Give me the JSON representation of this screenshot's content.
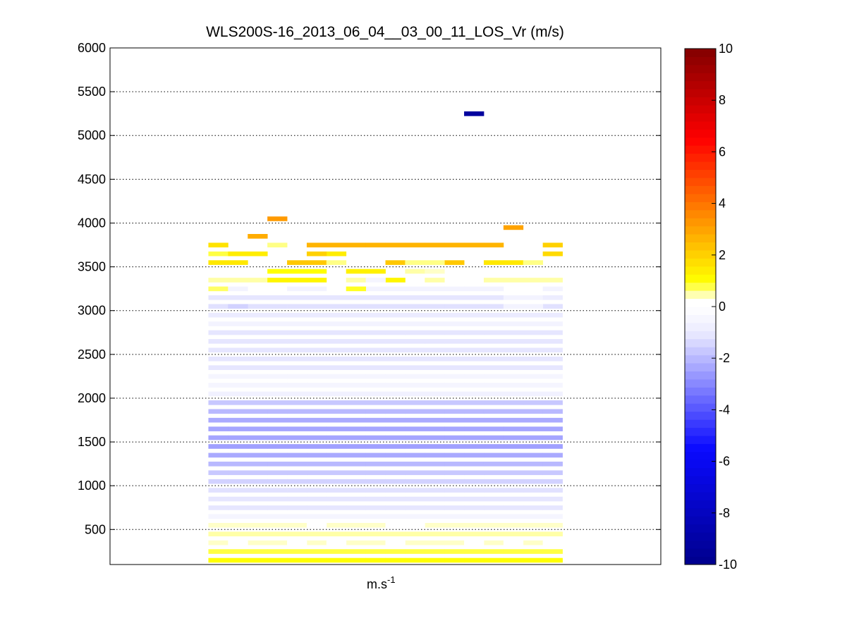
{
  "chart_data": {
    "type": "heatmap",
    "title": "WLS200S-16_2013_06_04__03_00_11_LOS_Vr (m/s)",
    "xlabel": {
      "base": "m.s",
      "exponent": "-1"
    },
    "ylabel": "",
    "ylim": [
      100,
      6000
    ],
    "yticks": [
      500,
      1000,
      1500,
      2000,
      2500,
      3000,
      3500,
      4000,
      4500,
      5000,
      5500,
      6000
    ],
    "grid": "dotted-horizontal",
    "colorbar": {
      "range": [
        -10,
        10
      ],
      "ticks": [
        -10,
        -8,
        -6,
        -4,
        -2,
        0,
        2,
        4,
        6,
        8,
        10
      ],
      "position": "right"
    },
    "columns": 18,
    "column_range": [
      5,
      23
    ],
    "x_span": [
      0,
      28
    ],
    "cell_height": 50,
    "cells": [
      {
        "z": 5250,
        "c": [
          18
        ],
        "v": -9.3
      },
      {
        "z": 4050,
        "c": [
          8
        ],
        "v": 3.2
      },
      {
        "z": 3950,
        "c": [
          20
        ],
        "v": 3.0
      },
      {
        "z": 3850,
        "c": [
          7
        ],
        "v": 2.8
      },
      {
        "z": 3750,
        "c": [
          5
        ],
        "v": 1.6
      },
      {
        "z": 3750,
        "c": [
          8
        ],
        "v": 0.6
      },
      {
        "z": 3750,
        "c": [
          10,
          11,
          12,
          13,
          14,
          15,
          16,
          17,
          18,
          19
        ],
        "v": 2.6
      },
      {
        "z": 3750,
        "c": [
          22
        ],
        "v": 2.0
      },
      {
        "z": 3650,
        "c": [
          5
        ],
        "v": 0.8
      },
      {
        "z": 3650,
        "c": [
          6,
          7,
          11
        ],
        "v": 1.4
      },
      {
        "z": 3650,
        "c": [
          10
        ],
        "v": 2.0
      },
      {
        "z": 3650,
        "c": [
          22
        ],
        "v": 1.8
      },
      {
        "z": 3550,
        "c": [
          5,
          6,
          19,
          20
        ],
        "v": 1.5
      },
      {
        "z": 3550,
        "c": [
          9,
          10,
          14,
          17
        ],
        "v": 2.2
      },
      {
        "z": 3550,
        "c": [
          11,
          15,
          16,
          21
        ],
        "v": 0.6
      },
      {
        "z": 3450,
        "c": [
          8,
          9,
          10
        ],
        "v": 1.0
      },
      {
        "z": 3450,
        "c": [
          12,
          13
        ],
        "v": 1.3
      },
      {
        "z": 3450,
        "c": [
          15
        ],
        "v": 0.5
      },
      {
        "z": 3450,
        "c": [
          16
        ],
        "v": 0.4
      },
      {
        "z": 3350,
        "c": [
          5,
          6,
          7,
          12,
          16,
          19,
          20,
          21,
          22
        ],
        "v": 0.5
      },
      {
        "z": 3350,
        "c": [
          8,
          9,
          10,
          14
        ],
        "v": 1.2
      },
      {
        "z": 3350,
        "c": [
          13
        ],
        "v": -0.5
      },
      {
        "z": 3250,
        "c": [
          5
        ],
        "v": 0.7
      },
      {
        "z": 3250,
        "c": [
          6,
          9,
          10,
          13,
          14,
          15,
          16,
          17,
          18,
          19,
          22
        ],
        "v": -0.6
      },
      {
        "z": 3250,
        "c": [
          12
        ],
        "v": 0.9
      },
      {
        "z": 3150,
        "c": [
          5,
          6,
          7,
          8,
          9,
          10,
          11,
          12,
          13,
          14,
          15,
          16,
          17,
          18,
          19
        ],
        "v": -1.1
      },
      {
        "z": 3150,
        "c": [
          20,
          21
        ],
        "v": -0.6
      },
      {
        "z": 3150,
        "c": [
          22
        ],
        "v": -0.9
      },
      {
        "z": 3050,
        "c": [
          5,
          7,
          8,
          9,
          10,
          11,
          12,
          13,
          14,
          15,
          16,
          17,
          18,
          19,
          22
        ],
        "v": -1.2
      },
      {
        "z": 3050,
        "c": [
          6
        ],
        "v": -1.5
      },
      {
        "z": 3050,
        "c": [
          20,
          21
        ],
        "v": -0.6
      },
      {
        "z": 2950,
        "c": [
          5,
          6,
          7,
          8,
          9,
          10,
          11,
          12,
          13,
          14,
          15,
          16,
          17,
          18,
          19,
          20,
          21,
          22
        ],
        "v": -1.0
      },
      {
        "z": 2850,
        "c": [
          5,
          6,
          7,
          8,
          9,
          10,
          11,
          12,
          13,
          14,
          15,
          16,
          17,
          18,
          19,
          20,
          21,
          22
        ],
        "v": -0.6
      },
      {
        "z": 2750,
        "c": [
          5,
          6,
          7,
          8,
          9,
          10,
          11,
          12,
          13,
          14,
          15,
          16,
          17,
          18,
          19,
          20,
          21,
          22
        ],
        "v": -1.1
      },
      {
        "z": 2650,
        "c": [
          5,
          6,
          7,
          8,
          9,
          10,
          11,
          12,
          13,
          14,
          15,
          16,
          17,
          18,
          19,
          20,
          21,
          22
        ],
        "v": -1.1
      },
      {
        "z": 2550,
        "c": [
          5,
          6,
          7,
          8,
          9,
          10,
          11,
          12,
          13,
          14,
          15,
          16,
          17,
          18,
          19,
          20,
          21,
          22
        ],
        "v": -1.1
      },
      {
        "z": 2450,
        "c": [
          5,
          6,
          7,
          8,
          9,
          10,
          11,
          12,
          13,
          14,
          15,
          16,
          17,
          18,
          19,
          20,
          21,
          22
        ],
        "v": -1.1
      },
      {
        "z": 2350,
        "c": [
          5,
          6,
          7,
          8,
          9,
          10,
          11,
          12,
          13,
          14,
          15,
          16,
          17,
          18,
          19,
          20,
          21,
          22
        ],
        "v": -1.1
      },
      {
        "z": 2250,
        "c": [
          5,
          6,
          7,
          8,
          9,
          10,
          11,
          12,
          13,
          14,
          15,
          16,
          17,
          18,
          19,
          20,
          21,
          22
        ],
        "v": -0.5
      },
      {
        "z": 2150,
        "c": [
          5,
          6,
          7,
          8,
          9,
          10,
          11,
          12,
          13,
          14,
          15,
          16,
          17,
          18,
          19,
          20,
          21,
          22
        ],
        "v": -0.5
      },
      {
        "z": 2050,
        "c": [
          5,
          6,
          7,
          8,
          9,
          10,
          11,
          12,
          13,
          14,
          15,
          16,
          17,
          18,
          19,
          20,
          21,
          22
        ],
        "v": -0.7
      },
      {
        "z": 1950,
        "c": [
          5,
          6,
          7,
          8,
          9,
          10,
          11,
          12,
          13,
          14,
          15,
          16,
          17,
          18,
          19,
          20,
          21,
          22
        ],
        "v": -1.7
      },
      {
        "z": 1850,
        "c": [
          5,
          6,
          7,
          8,
          9,
          10,
          11,
          12,
          13,
          14,
          15,
          16,
          17,
          18,
          19,
          20,
          21,
          22
        ],
        "v": -2.0
      },
      {
        "z": 1750,
        "c": [
          5,
          6,
          7,
          8,
          9,
          10,
          11,
          12,
          13,
          14,
          15,
          16,
          17,
          18,
          19,
          20,
          21,
          22
        ],
        "v": -2.3
      },
      {
        "z": 1650,
        "c": [
          5,
          6,
          7,
          8,
          9,
          10,
          11,
          12,
          13,
          14,
          15,
          16,
          17,
          18,
          19,
          20,
          21,
          22
        ],
        "v": -2.4
      },
      {
        "z": 1550,
        "c": [
          5,
          6,
          7,
          8,
          9,
          10,
          11,
          12,
          13,
          14,
          15,
          16,
          17,
          18,
          19,
          20,
          21,
          22
        ],
        "v": -2.4
      },
      {
        "z": 1450,
        "c": [
          5,
          6,
          7,
          8,
          9,
          10,
          11,
          12,
          13,
          14,
          15,
          16,
          17,
          18,
          19,
          20,
          21,
          22
        ],
        "v": -2.5
      },
      {
        "z": 1350,
        "c": [
          5,
          6,
          7,
          8,
          9,
          10,
          11,
          12,
          13,
          14,
          15,
          16,
          17,
          18,
          19,
          20,
          21,
          22
        ],
        "v": -2.3
      },
      {
        "z": 1250,
        "c": [
          5,
          6,
          7,
          8,
          9,
          10,
          11,
          12,
          13,
          14,
          15,
          16,
          17,
          18,
          19,
          20,
          21,
          22
        ],
        "v": -2.0
      },
      {
        "z": 1150,
        "c": [
          5,
          6,
          7,
          8,
          9,
          10,
          11,
          12,
          13,
          14,
          15,
          16,
          17,
          18,
          19,
          20,
          21,
          22
        ],
        "v": -1.7
      },
      {
        "z": 1050,
        "c": [
          5,
          6,
          7,
          8,
          9,
          10,
          11,
          12,
          13,
          14,
          15,
          16,
          17,
          18,
          19,
          20,
          21,
          22
        ],
        "v": -1.5
      },
      {
        "z": 950,
        "c": [
          5,
          6,
          7,
          8,
          9,
          10,
          11,
          12,
          13,
          14,
          15,
          16,
          17,
          18,
          19,
          20,
          21,
          22
        ],
        "v": -1.2
      },
      {
        "z": 850,
        "c": [
          5,
          6,
          7,
          8,
          9,
          10,
          11,
          12,
          13,
          14,
          15,
          16,
          17,
          18,
          19,
          20,
          21,
          22
        ],
        "v": -1.1
      },
      {
        "z": 750,
        "c": [
          5,
          6,
          7,
          8,
          9,
          10,
          11,
          12,
          13,
          14,
          15,
          16,
          17,
          18,
          19,
          20,
          21,
          22
        ],
        "v": -1.1
      },
      {
        "z": 650,
        "c": [
          5,
          6,
          7,
          8,
          9,
          10,
          11,
          12,
          13,
          14,
          15,
          16,
          17,
          18,
          19,
          20,
          21,
          22
        ],
        "v": -0.5
      },
      {
        "z": 550,
        "c": [
          5,
          6,
          7,
          8,
          9,
          11,
          12,
          13,
          16,
          17,
          18,
          19,
          20,
          21,
          22
        ],
        "v": 0.4
      },
      {
        "z": 550,
        "c": [
          10,
          14,
          15
        ],
        "v": 0.2
      },
      {
        "z": 450,
        "c": [
          5,
          6,
          7,
          8,
          9,
          10,
          11,
          12,
          13,
          14,
          15,
          16,
          17,
          18,
          19,
          20,
          21,
          22
        ],
        "v": 0.5
      },
      {
        "z": 350,
        "c": [
          5,
          7,
          8,
          10,
          12,
          13,
          15,
          16,
          17,
          19,
          21
        ],
        "v": 0.4
      },
      {
        "z": 350,
        "c": [
          6,
          9,
          11,
          14,
          18,
          20,
          22
        ],
        "v": 0.2
      },
      {
        "z": 250,
        "c": [
          5,
          6,
          7,
          8,
          9,
          10,
          11,
          12,
          13,
          14,
          15,
          16,
          17,
          18,
          19,
          20,
          21,
          22
        ],
        "v": 0.8
      },
      {
        "z": 150,
        "c": [
          5,
          6,
          7,
          8,
          9,
          10,
          11,
          12,
          13,
          14,
          15,
          16,
          17,
          18,
          19,
          20,
          21,
          22
        ],
        "v": 1.0
      }
    ]
  }
}
